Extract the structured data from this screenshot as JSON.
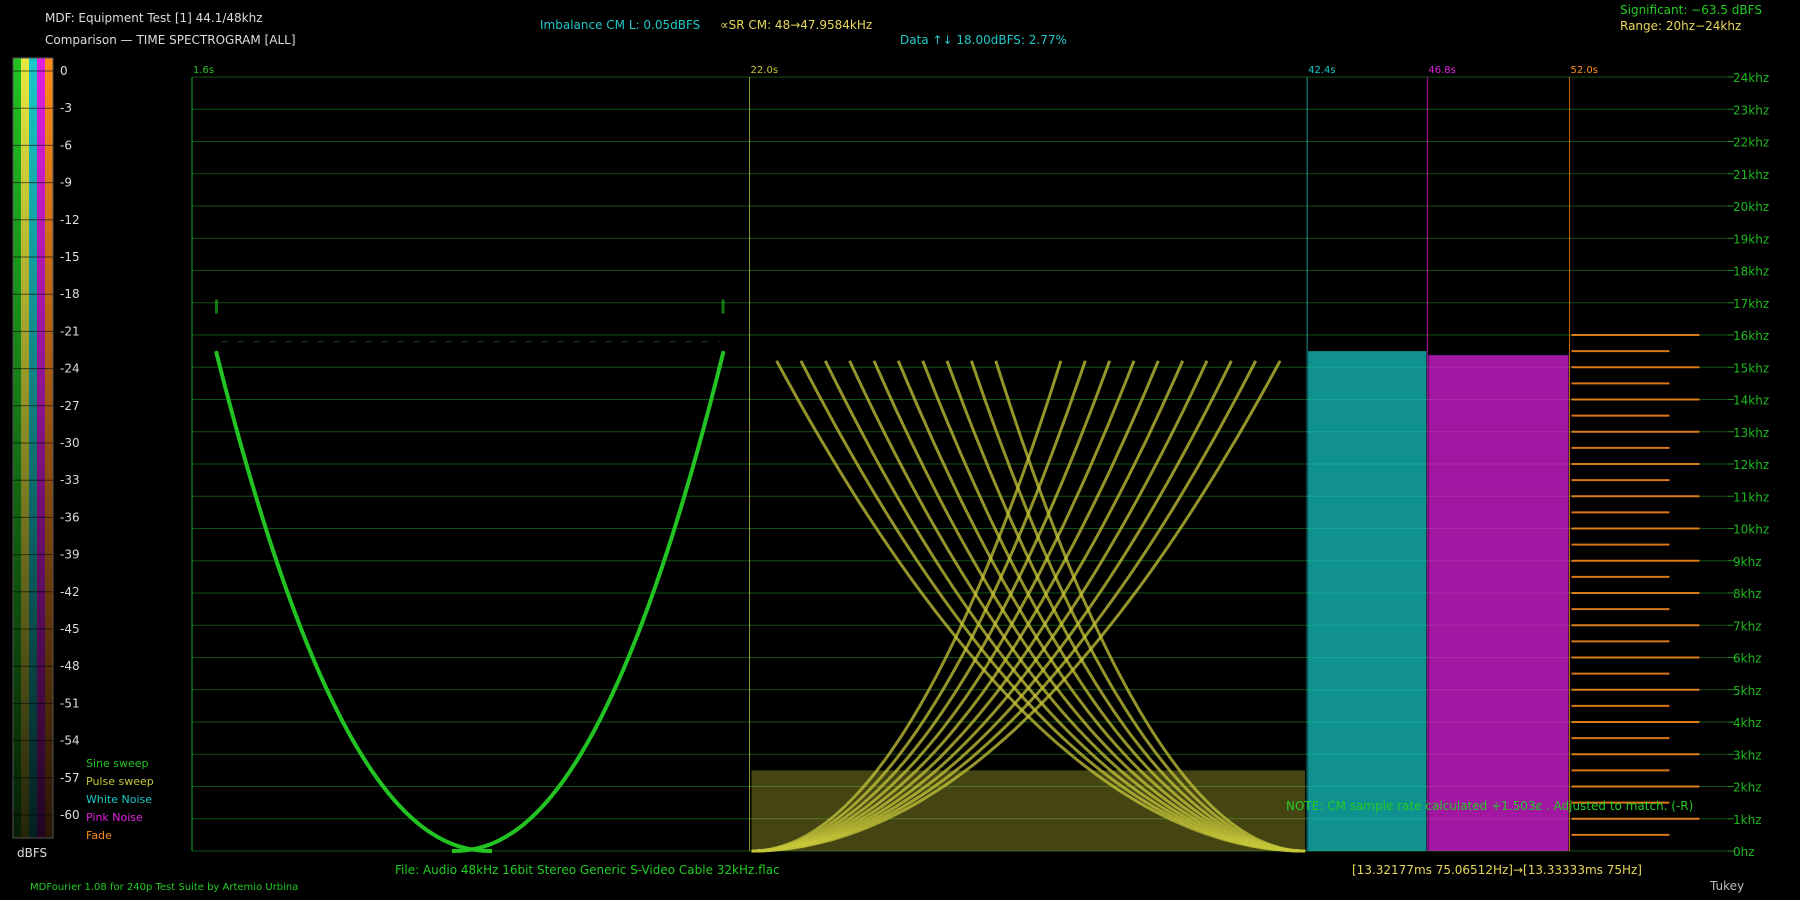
{
  "header": {
    "title": "MDF: Equipment Test [1] 44.1/48khz",
    "subtitle": "Comparison — TIME SPECTROGRAM [ALL]",
    "imbalance": "Imbalance CM L: 0.05dBFS",
    "sample_rate": "∝SR CM: 48→47.9584kHz",
    "data": "Data ↑↓ 18.00dBFS: 2.77%",
    "significant": "Significant: −63.5 dBFS",
    "range": "Range: 20hz−24khz"
  },
  "footer": {
    "file": "File: Audio   48kHz 16bit Stereo Generic S-Video Cable 32kHz.flac",
    "timing": "[13.32177ms 75.06512Hz]→[13.33333ms 75Hz]",
    "credit": "MDFourier 1.08 for 240p Test Suite by Artemio Urbina",
    "window": "Tukey",
    "note": "NOTE: CM sample rate calculated +1.503ȼ . Adjusted to match. (-R)"
  },
  "colors": {
    "sine": "#22c322",
    "pulse": "#c6c63a",
    "white": "#18c8c8",
    "pink": "#e020e0",
    "fade": "#ff8c1a",
    "grid": "#135013",
    "text_cyan": "#20c8c8",
    "text_yellow": "#e8d85a",
    "text_green": "#22cc22"
  },
  "chart_data": {
    "type": "heatmap",
    "title": "TIME SPECTROGRAM [ALL]",
    "xlabel": "",
    "ylabel": "",
    "x_unit": "s",
    "y_unit": "khz",
    "ylim": [
      0,
      24
    ],
    "yticks": [
      "0hz",
      "1khz",
      "2khz",
      "3khz",
      "4khz",
      "5khz",
      "6khz",
      "7khz",
      "8khz",
      "9khz",
      "10khz",
      "11khz",
      "12khz",
      "13khz",
      "14khz",
      "15khz",
      "16khz",
      "17khz",
      "18khz",
      "19khz",
      "20khz",
      "21khz",
      "22khz",
      "23khz",
      "24khz"
    ],
    "grid": true,
    "segments": [
      {
        "name": "Sine sweep",
        "start_s": 1.6,
        "start_label": "1.6s",
        "color": "#22c322"
      },
      {
        "name": "Pulse sweep",
        "start_s": 22.0,
        "start_label": "22.0s",
        "color": "#c6c63a"
      },
      {
        "name": "White Noise",
        "start_s": 42.4,
        "start_label": "42.4s",
        "color": "#18c8c8"
      },
      {
        "name": "Pink Noise",
        "start_s": 46.8,
        "start_label": "46.8s",
        "color": "#e020e0"
      },
      {
        "name": "Fade",
        "start_s": 52.0,
        "start_label": "52.0s",
        "color": "#ff8c1a"
      }
    ],
    "end_s": 57.8,
    "noise_cutoff_khz": 15.5,
    "color_scale": {
      "label": "dBFS",
      "ticks": [
        "0",
        "-3",
        "-6",
        "-9",
        "-12",
        "-15",
        "-18",
        "-21",
        "-24",
        "-27",
        "-30",
        "-33",
        "-36",
        "-39",
        "-42",
        "-45",
        "-48",
        "-51",
        "-54",
        "-57",
        "-60"
      ],
      "bar_colors": [
        "#22c322",
        "#e8e840",
        "#18c8c8",
        "#e020e0",
        "#ff8c1a"
      ]
    },
    "legend": [
      "Sine sweep",
      "Pulse sweep",
      "White Noise",
      "Pink Noise",
      "Fade"
    ],
    "legend_position": "bottom-left"
  }
}
